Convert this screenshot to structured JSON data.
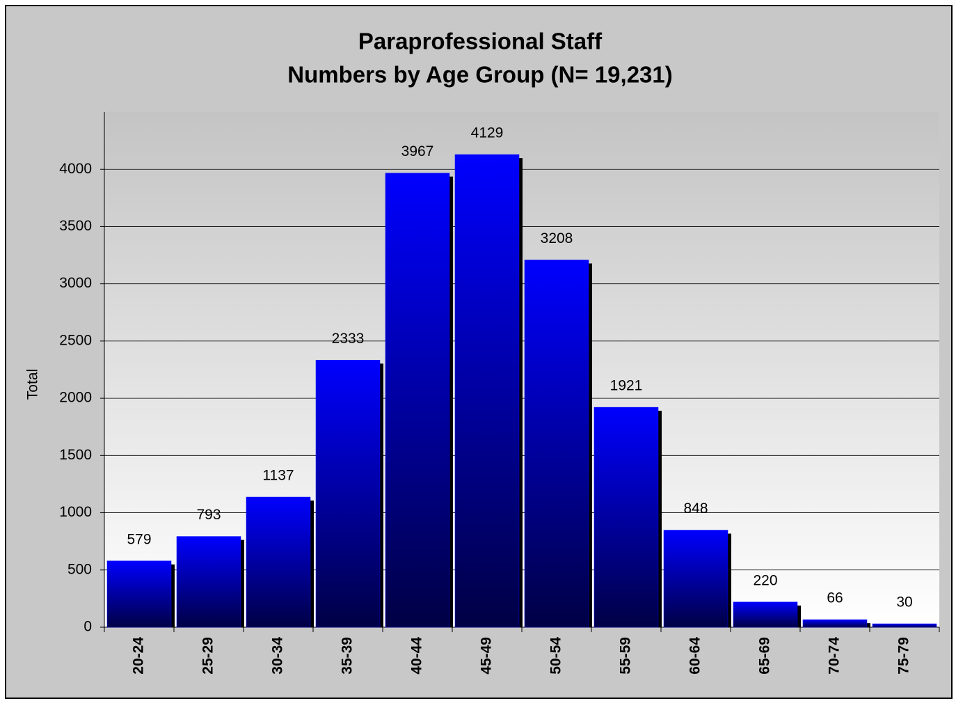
{
  "chart_data": {
    "type": "bar",
    "title": "Paraprofessional Staff",
    "subtitle": "Numbers by Age Group (N= 19,231)",
    "y_label": "Total",
    "categories": [
      "20-24",
      "25-29",
      "30-34",
      "35-39",
      "40-44",
      "45-49",
      "50-54",
      "55-59",
      "60-64",
      "65-69",
      "70-74",
      "75-79"
    ],
    "values": [
      579,
      793,
      1137,
      2333,
      3967,
      4129,
      3208,
      1921,
      848,
      220,
      66,
      30
    ],
    "color": "#0000ff",
    "ylim": [
      0,
      4500
    ],
    "yticks": [
      0,
      500,
      1000,
      1500,
      2000,
      2500,
      3000,
      3500,
      4000
    ],
    "grid": true
  }
}
